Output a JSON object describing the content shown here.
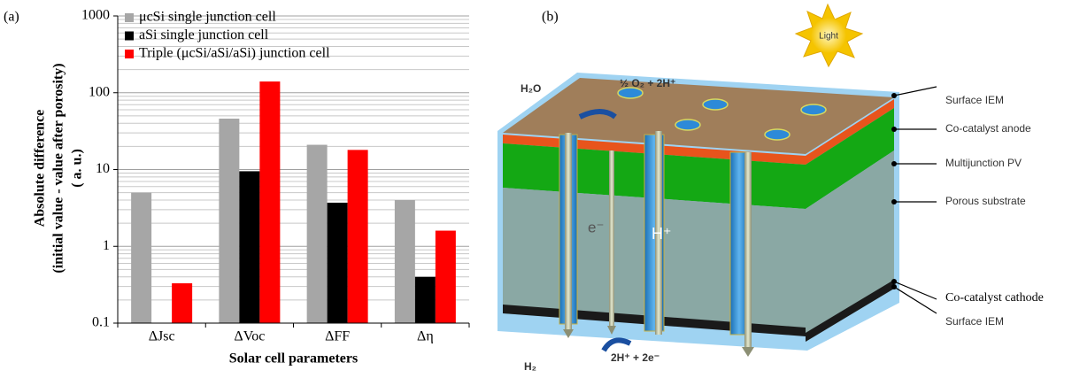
{
  "chart_data": {
    "type": "bar",
    "panel_label": "(a)",
    "xlabel": "Solar cell parameters",
    "ylabel": [
      "Absolute difference",
      "(initial value - value after porosity)",
      "( a. u.)"
    ],
    "categories": [
      "ΔJsc",
      "ΔVoc",
      "ΔFF",
      "Δη"
    ],
    "series": [
      {
        "name": "μcSi single junction cell",
        "color": "#a6a6a6",
        "values": [
          5,
          46,
          21,
          4
        ]
      },
      {
        "name": "aSi single junction cell",
        "color": "#000000",
        "values": [
          null,
          9.5,
          3.7,
          0.4
        ]
      },
      {
        "name": "Triple (μcSi/aSi/aSi) junction cell",
        "color": "#ff0000",
        "values": [
          0.33,
          140,
          18,
          1.6
        ]
      }
    ],
    "ylim": [
      0.1,
      1000
    ],
    "yticks": [
      0.1,
      1,
      10,
      100,
      1000
    ],
    "yminorticks": [
      0.2,
      0.3,
      0.4,
      0.5,
      0.6,
      0.7,
      0.8,
      0.9,
      2,
      3,
      4,
      5,
      6,
      7,
      8,
      9,
      20,
      30,
      40,
      50,
      60,
      70,
      80,
      90,
      200,
      300,
      400,
      500,
      600,
      700,
      800,
      900
    ],
    "log_y": true,
    "grid": true,
    "legend": "upper left"
  },
  "diagram": {
    "panel_label": "(b)",
    "sun": "Light",
    "species": [
      "H₂O",
      "½ O₂ + 2H⁺",
      "e⁻",
      "H⁺",
      "H₂",
      "2H⁺ + 2e⁻"
    ],
    "layers": [
      "Surface IEM",
      "Co-catalyst anode",
      "Multijunction PV",
      "Porous substrate",
      "Co-catalyst cathode",
      "Surface IEM"
    ]
  }
}
